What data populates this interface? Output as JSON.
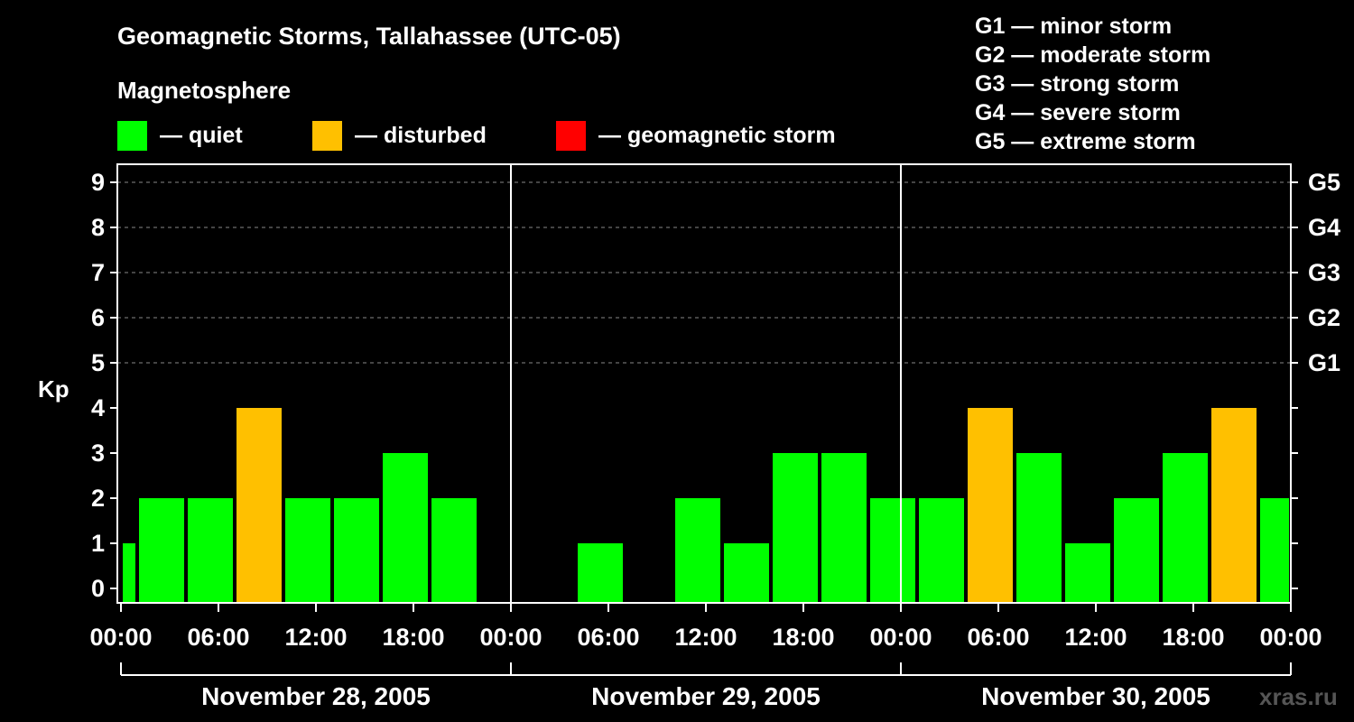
{
  "chart_data": {
    "type": "bar",
    "title": "Geomagnetic Storms, Tallahassee (UTC-05)",
    "ylabel": "Kp",
    "ylim": [
      0,
      9
    ],
    "y_ticks": [
      "0",
      "1",
      "2",
      "3",
      "4",
      "5",
      "6",
      "7",
      "8",
      "9"
    ],
    "right_axis": [
      {
        "label": "G1",
        "kp": 5
      },
      {
        "label": "G2",
        "kp": 6
      },
      {
        "label": "G3",
        "kp": 7
      },
      {
        "label": "G4",
        "kp": 8
      },
      {
        "label": "G5",
        "kp": 9
      }
    ],
    "x_tick_labels": [
      "00:00",
      "06:00",
      "12:00",
      "18:00",
      "00:00",
      "06:00",
      "12:00",
      "18:00",
      "00:00",
      "06:00",
      "12:00",
      "18:00",
      "00:00"
    ],
    "days": [
      "November 28, 2005",
      "November 29, 2005",
      "November 30, 2005"
    ],
    "legend_title": "Magnetosphere",
    "legend": [
      {
        "label": "— quiet",
        "color": "#00ff00"
      },
      {
        "label": "— disturbed",
        "color": "#ffc000"
      },
      {
        "label": "— geomagnetic storm",
        "color": "#ff0000"
      }
    ],
    "storm_scale": [
      "G1 — minor storm",
      "G2 — moderate storm",
      "G3 — strong storm",
      "G4 — severe storm",
      "G5 — extreme storm"
    ],
    "colors": {
      "quiet": "#00ff00",
      "disturbed": "#ffc000",
      "storm": "#ff0000"
    },
    "bars": [
      {
        "start_hour": 0,
        "end_hour": 1,
        "kp": 1,
        "status": "quiet"
      },
      {
        "start_hour": 1,
        "end_hour": 4,
        "kp": 2,
        "status": "quiet"
      },
      {
        "start_hour": 4,
        "end_hour": 7,
        "kp": 2,
        "status": "quiet"
      },
      {
        "start_hour": 7,
        "end_hour": 10,
        "kp": 4,
        "status": "disturbed"
      },
      {
        "start_hour": 10,
        "end_hour": 13,
        "kp": 2,
        "status": "quiet"
      },
      {
        "start_hour": 13,
        "end_hour": 16,
        "kp": 2,
        "status": "quiet"
      },
      {
        "start_hour": 16,
        "end_hour": 19,
        "kp": 3,
        "status": "quiet"
      },
      {
        "start_hour": 19,
        "end_hour": 22,
        "kp": 2,
        "status": "quiet"
      },
      {
        "start_hour": 28,
        "end_hour": 31,
        "kp": 1,
        "status": "quiet"
      },
      {
        "start_hour": 34,
        "end_hour": 37,
        "kp": 2,
        "status": "quiet"
      },
      {
        "start_hour": 37,
        "end_hour": 40,
        "kp": 1,
        "status": "quiet"
      },
      {
        "start_hour": 40,
        "end_hour": 43,
        "kp": 3,
        "status": "quiet"
      },
      {
        "start_hour": 43,
        "end_hour": 46,
        "kp": 3,
        "status": "quiet"
      },
      {
        "start_hour": 46,
        "end_hour": 49,
        "kp": 2,
        "status": "quiet"
      },
      {
        "start_hour": 49,
        "end_hour": 52,
        "kp": 2,
        "status": "quiet"
      },
      {
        "start_hour": 52,
        "end_hour": 55,
        "kp": 4,
        "status": "disturbed"
      },
      {
        "start_hour": 55,
        "end_hour": 58,
        "kp": 3,
        "status": "quiet"
      },
      {
        "start_hour": 58,
        "end_hour": 61,
        "kp": 1,
        "status": "quiet"
      },
      {
        "start_hour": 61,
        "end_hour": 64,
        "kp": 2,
        "status": "quiet"
      },
      {
        "start_hour": 64,
        "end_hour": 67,
        "kp": 3,
        "status": "quiet"
      },
      {
        "start_hour": 67,
        "end_hour": 70,
        "kp": 4,
        "status": "disturbed"
      },
      {
        "start_hour": 70,
        "end_hour": 72,
        "kp": 2,
        "status": "quiet"
      }
    ],
    "watermark": "xras.ru",
    "grid": true
  }
}
